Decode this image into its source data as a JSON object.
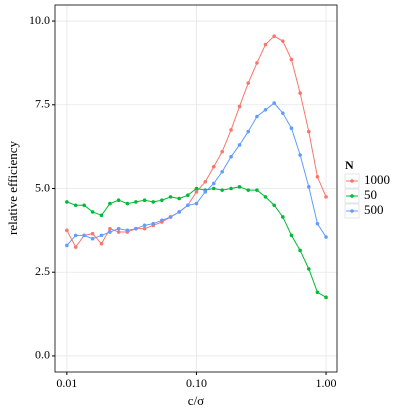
{
  "chart_data": {
    "type": "line",
    "x_label": "c/σ",
    "y_label": "relative efficiency",
    "legend_title": "N",
    "legend_position": "right",
    "xscale": "log",
    "grid": true,
    "xlim": [
      0.0081,
      1.215
    ],
    "ylim": [
      -0.48,
      10.48
    ],
    "xticks": [
      0.01,
      {
        "value": 0.1,
        "label": "0.10"
      },
      {
        "value": 1,
        "label": "1.00"
      }
    ],
    "yticks": [
      {
        "value": 0,
        "label": "0.0"
      },
      2.5,
      {
        "value": 5,
        "label": "5.0"
      },
      7.5,
      {
        "value": 10,
        "label": "10.0"
      }
    ],
    "x": [
      0.01,
      0.0117,
      0.0136,
      0.0158,
      0.0185,
      0.0215,
      0.0251,
      0.0293,
      0.0341,
      0.0398,
      0.0464,
      0.0541,
      0.0631,
      0.0736,
      0.0858,
      0.1,
      0.117,
      0.136,
      0.158,
      0.185,
      0.215,
      0.251,
      0.293,
      0.341,
      0.398,
      0.464,
      0.541,
      0.631,
      0.736,
      0.858,
      1.0
    ],
    "series": [
      {
        "name": "1000",
        "color": "#F8766D",
        "values": [
          3.75,
          3.25,
          3.6,
          3.65,
          3.35,
          3.8,
          3.7,
          3.7,
          3.8,
          3.8,
          3.9,
          4.0,
          4.15,
          4.3,
          4.5,
          4.9,
          5.2,
          5.65,
          6.1,
          6.75,
          7.45,
          8.15,
          8.75,
          9.3,
          9.55,
          9.4,
          8.85,
          7.85,
          6.7,
          5.35,
          4.75
        ]
      },
      {
        "name": "50",
        "color": "#00BA38",
        "values": [
          4.6,
          4.5,
          4.5,
          4.3,
          4.2,
          4.55,
          4.65,
          4.55,
          4.6,
          4.65,
          4.6,
          4.65,
          4.75,
          4.7,
          4.8,
          5.0,
          4.95,
          5.0,
          4.95,
          5.0,
          5.05,
          4.95,
          4.95,
          4.75,
          4.5,
          4.15,
          3.6,
          3.15,
          2.6,
          1.9,
          1.75
        ]
      },
      {
        "name": "500",
        "color": "#619CFF",
        "values": [
          3.3,
          3.6,
          3.6,
          3.5,
          3.6,
          3.7,
          3.8,
          3.75,
          3.8,
          3.9,
          3.95,
          4.05,
          4.15,
          4.3,
          4.5,
          4.55,
          4.9,
          5.15,
          5.5,
          5.95,
          6.3,
          6.7,
          7.15,
          7.35,
          7.55,
          7.25,
          6.8,
          6.0,
          5.05,
          3.95,
          3.55
        ]
      }
    ]
  }
}
